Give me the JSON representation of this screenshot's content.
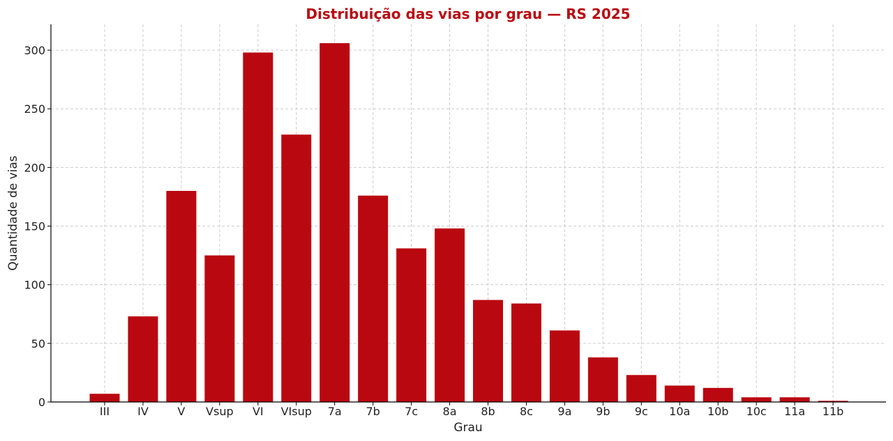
{
  "chart_data": {
    "type": "bar",
    "title": "Distribuição das vias por grau — RS 2025",
    "xlabel": "Grau",
    "ylabel": "Quantidade de vias",
    "categories": [
      "III",
      "IV",
      "V",
      "Vsup",
      "VI",
      "VIsup",
      "7a",
      "7b",
      "7c",
      "8a",
      "8b",
      "8c",
      "9a",
      "9b",
      "9c",
      "10a",
      "10b",
      "10c",
      "11a",
      "11b"
    ],
    "values": [
      7,
      73,
      180,
      125,
      298,
      228,
      306,
      176,
      131,
      148,
      87,
      84,
      61,
      38,
      23,
      14,
      12,
      4,
      4,
      1
    ],
    "ylim": [
      0,
      322
    ],
    "yticks": [
      0,
      50,
      100,
      150,
      200,
      250,
      300
    ],
    "grid": true,
    "colors": {
      "bar": "#BA0811",
      "title": "#BA0811"
    }
  }
}
